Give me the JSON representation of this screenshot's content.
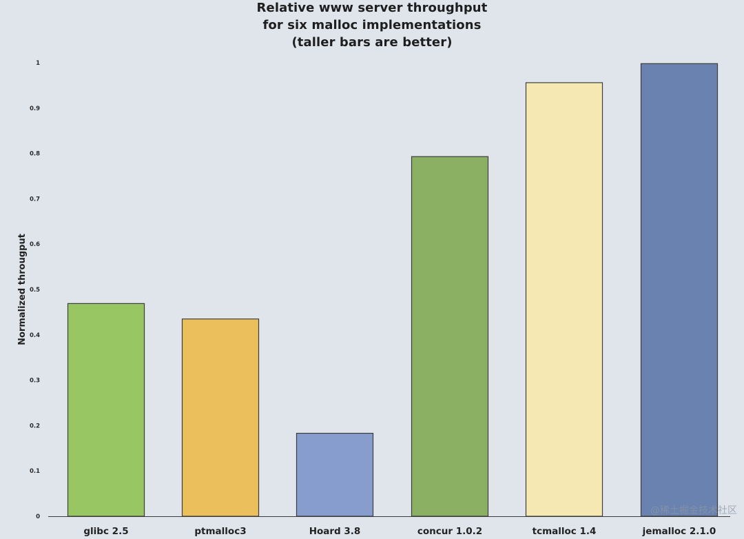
{
  "watermark": "@稀土掘金技术社区",
  "colors": {
    "background": "#e0e5ec",
    "bar_stroke": "#3c3c3c",
    "axis": "#3a3a3a"
  },
  "chart_data": {
    "type": "bar",
    "title": [
      "Relative www server throughput",
      "for six malloc implementations",
      "(taller bars are better)"
    ],
    "xlabel": "",
    "ylabel": "Normalized througput",
    "ylim": [
      0,
      1
    ],
    "yticks": [
      "0",
      "0.1",
      "0.2",
      "0.3",
      "0.4",
      "0.5",
      "0.6",
      "0.7",
      "0.8",
      "0.9",
      "1"
    ],
    "grid": false,
    "categories": [
      "glibc 2.5",
      "ptmalloc3",
      "Hoard 3.8",
      "concur 1.0.2",
      "tcmalloc 1.4",
      "jemalloc 2.1.0"
    ],
    "values": [
      0.469,
      0.435,
      0.183,
      0.793,
      0.956,
      0.998
    ],
    "bar_colors": [
      "#98c662",
      "#ebc05c",
      "#869dce",
      "#8bb063",
      "#f6e8b3",
      "#6a82b0"
    ]
  }
}
